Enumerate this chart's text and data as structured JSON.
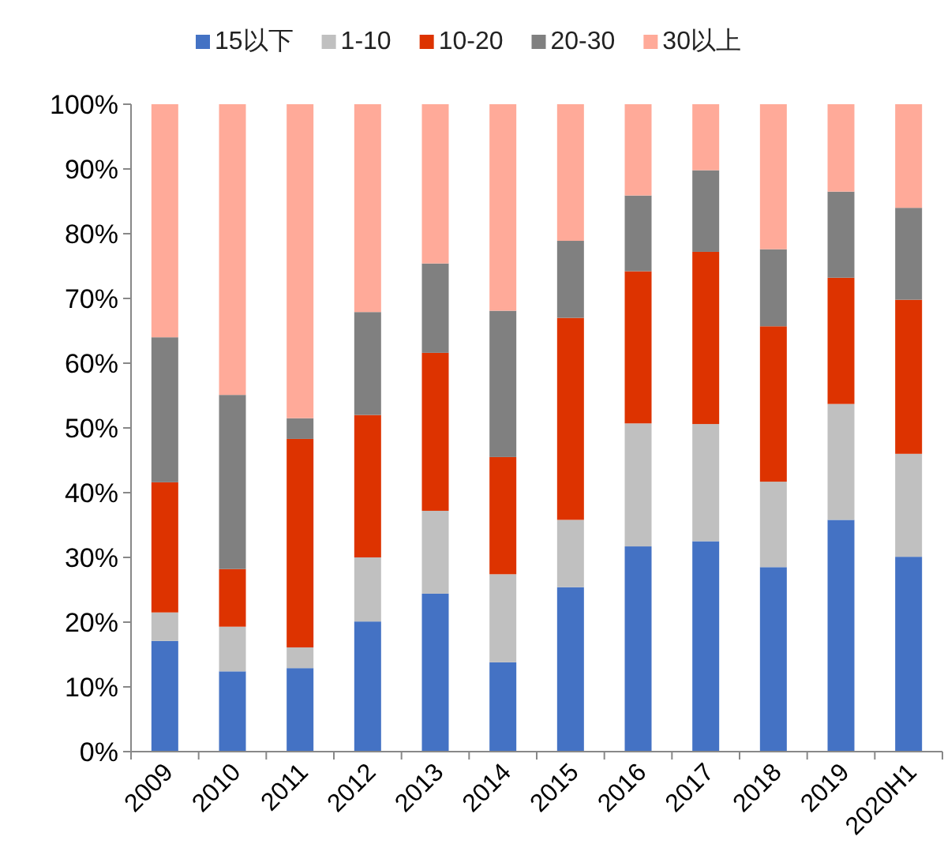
{
  "chart_data": {
    "type": "bar",
    "stacked": true,
    "legend": "top",
    "categories": [
      "2009",
      "2010",
      "2011",
      "2012",
      "2013",
      "2014",
      "2015",
      "2016",
      "2017",
      "2018",
      "2019",
      "2020H1"
    ],
    "ylim": [
      0,
      100
    ],
    "yticks": [
      {
        "value": 0,
        "label": "0%"
      },
      {
        "value": 10,
        "label": "10%"
      },
      {
        "value": 20,
        "label": "20%"
      },
      {
        "value": 30,
        "label": "30%"
      },
      {
        "value": 40,
        "label": "40%"
      },
      {
        "value": 50,
        "label": "50%"
      },
      {
        "value": 60,
        "label": "60%"
      },
      {
        "value": 70,
        "label": "70%"
      },
      {
        "value": 80,
        "label": "80%"
      },
      {
        "value": 90,
        "label": "90%"
      },
      {
        "value": 100,
        "label": "100%"
      }
    ],
    "series": [
      {
        "name": "15以下",
        "color": "#4472c4",
        "values": [
          17.1,
          12.4,
          12.9,
          20.1,
          24.4,
          13.8,
          25.4,
          31.7,
          32.5,
          28.5,
          35.8,
          30.1
        ]
      },
      {
        "name": "1-10",
        "color": "#c0c0c0",
        "values": [
          4.4,
          6.9,
          3.2,
          9.9,
          12.8,
          13.6,
          10.4,
          19.0,
          18.1,
          13.2,
          17.9,
          15.9
        ]
      },
      {
        "name": "10-20",
        "color": "#dd3300",
        "values": [
          20.1,
          8.9,
          32.2,
          22.0,
          24.4,
          18.1,
          31.2,
          23.5,
          26.6,
          24.0,
          19.5,
          23.8
        ]
      },
      {
        "name": "20-30",
        "color": "#808080",
        "values": [
          22.4,
          26.9,
          3.2,
          15.9,
          13.8,
          22.6,
          11.9,
          11.7,
          12.6,
          11.9,
          13.3,
          14.2
        ]
      },
      {
        "name": "30以上",
        "color": "#ffaa99",
        "values": [
          36.0,
          44.9,
          48.5,
          32.1,
          24.6,
          31.9,
          21.1,
          14.1,
          10.2,
          22.4,
          13.5,
          16.0
        ]
      }
    ]
  }
}
